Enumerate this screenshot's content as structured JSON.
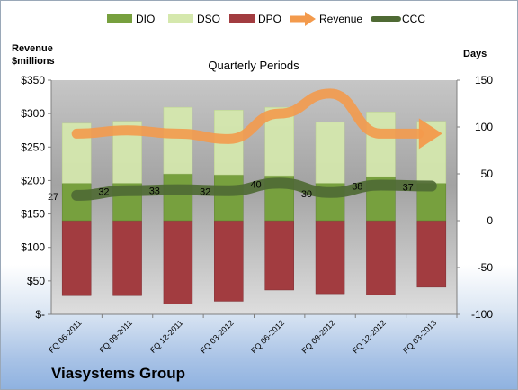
{
  "company": "Viasystems Group",
  "chart_data": {
    "type": "bar",
    "title": "Quarterly Periods",
    "left_axis_label_line1": "Revenue",
    "left_axis_label_line2": "$millions",
    "right_axis_label": "Days",
    "categories": [
      "FQ 06-2011",
      "FQ 09-2011",
      "FQ 12-2011",
      "FQ 03-2012",
      "FQ 06-2012",
      "FQ 09-2012",
      "FQ 12-2012",
      "FQ 03-2013"
    ],
    "left_ylim": [
      0,
      350
    ],
    "left_ticks": [
      "$-",
      "$50",
      "$100",
      "$150",
      "$200",
      "$250",
      "$300",
      "$350"
    ],
    "left_tick_values": [
      0,
      50,
      100,
      150,
      200,
      250,
      300,
      350
    ],
    "right_ylim": [
      -100,
      150
    ],
    "right_ticks": [
      "-100",
      "-50",
      "0",
      "50",
      "100",
      "150"
    ],
    "right_tick_values": [
      -100,
      -50,
      0,
      50,
      100,
      150
    ],
    "series": [
      {
        "name": "DIO",
        "axis": "days",
        "color": "#77a03e",
        "values": [
          40,
          40,
          50,
          49,
          48,
          40,
          47,
          40
        ]
      },
      {
        "name": "DSO",
        "axis": "days",
        "color": "#d5e8ad",
        "values": [
          64,
          66,
          71,
          69,
          73,
          65,
          69,
          66
        ]
      },
      {
        "name": "DPO",
        "axis": "days",
        "color": "#a23c40",
        "values": [
          -80,
          -80,
          -89,
          -86,
          -74,
          -78,
          -79,
          -71
        ]
      },
      {
        "name": "Revenue",
        "axis": "revenue",
        "color": "#f39a4c",
        "values": [
          270,
          275,
          270,
          262,
          300,
          330,
          270,
          270
        ]
      },
      {
        "name": "CCC",
        "axis": "days",
        "color": "#4f6a34",
        "values": [
          27,
          32,
          33,
          32,
          40,
          30,
          38,
          37
        ]
      }
    ],
    "ccc_labels": [
      "27",
      "32",
      "33",
      "32",
      "40",
      "30",
      "38",
      "37"
    ],
    "legend_position": "top",
    "grid": false
  }
}
